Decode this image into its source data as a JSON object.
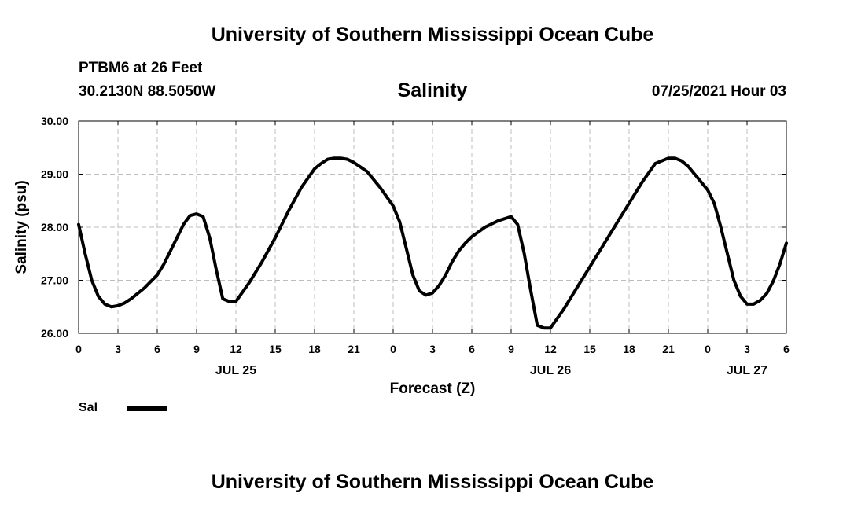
{
  "header": {
    "title": "University of Southern Mississippi Ocean Cube",
    "station": "PTBM6 at 26 Feet",
    "coords": "30.2130N  88.5050W",
    "chart_title": "Salinity",
    "valid_time": "07/25/2021 Hour 03"
  },
  "footer": {
    "title": "University of Southern Mississippi Ocean Cube"
  },
  "legend": {
    "label": "Sal"
  },
  "colors": {
    "line": "#000000",
    "grid": "#bdbdbd",
    "axis": "#000000"
  },
  "chart_data": {
    "type": "line",
    "title": "Salinity",
    "xlabel": "Forecast (Z)",
    "ylabel": "Salinity (psu)",
    "xlim": [
      0,
      54
    ],
    "ylim": [
      26.0,
      30.0
    ],
    "grid": true,
    "legend_position": "bottom-left",
    "x_ticks": [
      0,
      3,
      6,
      9,
      12,
      15,
      18,
      21,
      24,
      27,
      30,
      33,
      36,
      39,
      42,
      45,
      48,
      51,
      54
    ],
    "x_tick_labels": [
      "0",
      "3",
      "6",
      "9",
      "12",
      "15",
      "18",
      "21",
      "0",
      "3",
      "6",
      "9",
      "12",
      "15",
      "18",
      "21",
      "0",
      "3",
      "6"
    ],
    "y_ticks": [
      26.0,
      27.0,
      28.0,
      29.0,
      30.0
    ],
    "y_tick_labels": [
      "26.00",
      "27.00",
      "28.00",
      "29.00",
      "30.00"
    ],
    "date_labels": [
      {
        "x": 12,
        "label": "JUL 25"
      },
      {
        "x": 36,
        "label": "JUL 26"
      },
      {
        "x": 51,
        "label": "JUL 27"
      }
    ],
    "series": [
      {
        "name": "Sal",
        "x": [
          0,
          0.5,
          1,
          1.5,
          2,
          2.5,
          3,
          3.5,
          4,
          5,
          6,
          6.5,
          7,
          7.5,
          8,
          8.5,
          9,
          9.5,
          10,
          10.5,
          11,
          11.5,
          12,
          13,
          14,
          15,
          16,
          17,
          18,
          18.5,
          19,
          19.5,
          20,
          20.5,
          21,
          22,
          23,
          24,
          24.5,
          25,
          25.5,
          26,
          26.5,
          27,
          27.5,
          28,
          28.5,
          29,
          29.5,
          30,
          31,
          32,
          33,
          33.5,
          34,
          34.5,
          35,
          35.5,
          36,
          37,
          38,
          39,
          40,
          41,
          42,
          43,
          44,
          45,
          45.5,
          46,
          46.5,
          47,
          47.5,
          48,
          48.5,
          49,
          49.5,
          50,
          50.5,
          51,
          51.5,
          52,
          52.5,
          53,
          53.5,
          54
        ],
        "values": [
          28.05,
          27.5,
          27.0,
          26.7,
          26.55,
          26.5,
          26.52,
          26.57,
          26.65,
          26.85,
          27.1,
          27.3,
          27.55,
          27.8,
          28.05,
          28.22,
          28.25,
          28.2,
          27.8,
          27.2,
          26.65,
          26.6,
          26.6,
          26.95,
          27.35,
          27.8,
          28.3,
          28.75,
          29.1,
          29.2,
          29.28,
          29.3,
          29.3,
          29.28,
          29.22,
          29.05,
          28.75,
          28.4,
          28.1,
          27.6,
          27.1,
          26.8,
          26.72,
          26.76,
          26.9,
          27.1,
          27.35,
          27.55,
          27.7,
          27.82,
          28.0,
          28.12,
          28.2,
          28.05,
          27.5,
          26.8,
          26.15,
          26.1,
          26.1,
          26.45,
          26.85,
          27.25,
          27.65,
          28.05,
          28.45,
          28.85,
          29.2,
          29.3,
          29.3,
          29.25,
          29.15,
          29.0,
          28.85,
          28.7,
          28.45,
          28.0,
          27.5,
          27.0,
          26.7,
          26.55,
          26.55,
          26.62,
          26.75,
          26.98,
          27.3,
          27.7
        ]
      }
    ]
  }
}
